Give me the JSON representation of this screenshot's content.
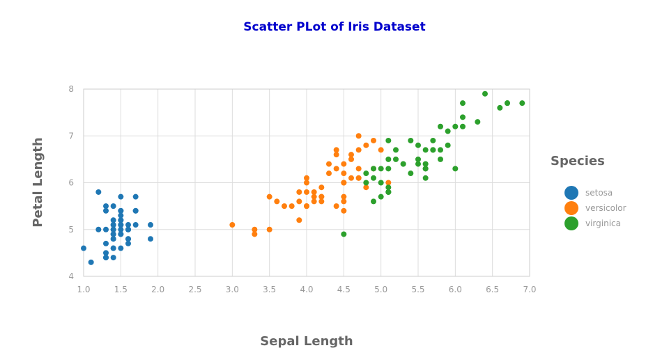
{
  "chart_data": {
    "type": "scatter",
    "title": "Scatter PLot of Iris Dataset",
    "title_color": "#0000cc",
    "xlabel": "Sepal Length",
    "ylabel": "Petal Length",
    "xlim": [
      1.0,
      7.0
    ],
    "ylim": [
      4,
      8
    ],
    "x_ticks": [
      "1.0",
      "1.5",
      "2.0",
      "2.5",
      "3.0",
      "3.5",
      "4.0",
      "4.5",
      "5.0",
      "5.5",
      "6.0",
      "6.5",
      "7.0"
    ],
    "y_ticks": [
      "4",
      "5",
      "6",
      "7",
      "8"
    ],
    "grid": true,
    "legend_title": "Species",
    "legend_position": "right",
    "series": [
      {
        "name": "setosa",
        "color": "#1f77b4",
        "points": [
          [
            1.4,
            5.1
          ],
          [
            1.4,
            4.9
          ],
          [
            1.3,
            4.7
          ],
          [
            1.5,
            4.6
          ],
          [
            1.4,
            5.0
          ],
          [
            1.7,
            5.4
          ],
          [
            1.4,
            4.6
          ],
          [
            1.5,
            5.0
          ],
          [
            1.4,
            4.4
          ],
          [
            1.5,
            4.9
          ],
          [
            1.5,
            5.4
          ],
          [
            1.6,
            4.8
          ],
          [
            1.4,
            4.8
          ],
          [
            1.1,
            4.3
          ],
          [
            1.2,
            5.8
          ],
          [
            1.5,
            5.7
          ],
          [
            1.3,
            5.4
          ],
          [
            1.4,
            5.1
          ],
          [
            1.7,
            5.7
          ],
          [
            1.5,
            5.1
          ],
          [
            1.7,
            5.4
          ],
          [
            1.5,
            5.1
          ],
          [
            1.0,
            4.6
          ],
          [
            1.7,
            5.1
          ],
          [
            1.9,
            4.8
          ],
          [
            1.6,
            5.0
          ],
          [
            1.6,
            5.0
          ],
          [
            1.5,
            5.2
          ],
          [
            1.4,
            5.2
          ],
          [
            1.6,
            4.7
          ],
          [
            1.6,
            4.8
          ],
          [
            1.5,
            5.4
          ],
          [
            1.5,
            5.2
          ],
          [
            1.4,
            5.5
          ],
          [
            1.5,
            4.9
          ],
          [
            1.2,
            5.0
          ],
          [
            1.3,
            5.5
          ],
          [
            1.4,
            4.9
          ],
          [
            1.3,
            4.4
          ],
          [
            1.5,
            5.1
          ],
          [
            1.3,
            5.0
          ],
          [
            1.3,
            4.5
          ],
          [
            1.3,
            4.4
          ],
          [
            1.6,
            5.0
          ],
          [
            1.9,
            5.1
          ],
          [
            1.4,
            4.8
          ],
          [
            1.6,
            5.1
          ],
          [
            1.4,
            4.6
          ],
          [
            1.5,
            5.3
          ],
          [
            1.4,
            5.0
          ]
        ]
      },
      {
        "name": "versicolor",
        "color": "#ff7f0e",
        "points": [
          [
            4.7,
            7.0
          ],
          [
            4.5,
            6.4
          ],
          [
            4.9,
            6.9
          ],
          [
            4.0,
            5.5
          ],
          [
            4.6,
            6.5
          ],
          [
            4.5,
            5.7
          ],
          [
            4.7,
            6.3
          ],
          [
            3.3,
            4.9
          ],
          [
            4.6,
            6.6
          ],
          [
            3.9,
            5.2
          ],
          [
            3.5,
            5.0
          ],
          [
            4.2,
            5.9
          ],
          [
            4.0,
            6.0
          ],
          [
            4.7,
            6.1
          ],
          [
            3.6,
            5.6
          ],
          [
            4.4,
            6.7
          ],
          [
            4.5,
            5.6
          ],
          [
            4.1,
            5.8
          ],
          [
            4.5,
            6.2
          ],
          [
            3.9,
            5.6
          ],
          [
            4.8,
            5.9
          ],
          [
            4.0,
            6.1
          ],
          [
            4.9,
            6.3
          ],
          [
            4.7,
            6.1
          ],
          [
            4.3,
            6.4
          ],
          [
            4.4,
            6.6
          ],
          [
            4.8,
            6.8
          ],
          [
            5.0,
            6.7
          ],
          [
            4.5,
            6.0
          ],
          [
            3.5,
            5.7
          ],
          [
            3.8,
            5.5
          ],
          [
            3.7,
            5.5
          ],
          [
            3.9,
            5.8
          ],
          [
            5.1,
            6.0
          ],
          [
            4.5,
            5.4
          ],
          [
            4.5,
            6.0
          ],
          [
            4.7,
            6.7
          ],
          [
            4.4,
            6.3
          ],
          [
            4.1,
            5.6
          ],
          [
            4.0,
            5.5
          ],
          [
            4.4,
            5.5
          ],
          [
            4.6,
            6.1
          ],
          [
            4.0,
            5.8
          ],
          [
            3.3,
            5.0
          ],
          [
            4.2,
            5.6
          ],
          [
            4.2,
            5.7
          ],
          [
            4.2,
            5.7
          ],
          [
            4.3,
            6.2
          ],
          [
            3.0,
            5.1
          ],
          [
            4.1,
            5.7
          ]
        ]
      },
      {
        "name": "virginica",
        "color": "#2ca02c",
        "points": [
          [
            6.0,
            6.3
          ],
          [
            5.1,
            5.8
          ],
          [
            5.9,
            7.1
          ],
          [
            5.6,
            6.3
          ],
          [
            5.8,
            6.5
          ],
          [
            6.6,
            7.6
          ],
          [
            4.5,
            4.9
          ],
          [
            6.3,
            7.3
          ],
          [
            5.8,
            6.7
          ],
          [
            6.1,
            7.2
          ],
          [
            5.1,
            6.5
          ],
          [
            5.3,
            6.4
          ],
          [
            5.5,
            6.8
          ],
          [
            5.0,
            5.7
          ],
          [
            5.1,
            5.8
          ],
          [
            5.3,
            6.4
          ],
          [
            5.5,
            6.5
          ],
          [
            6.7,
            7.7
          ],
          [
            6.9,
            7.7
          ],
          [
            5.0,
            6.0
          ],
          [
            5.7,
            6.9
          ],
          [
            4.9,
            5.6
          ],
          [
            6.7,
            7.7
          ],
          [
            4.9,
            6.3
          ],
          [
            5.7,
            6.7
          ],
          [
            6.0,
            7.2
          ],
          [
            4.8,
            6.2
          ],
          [
            4.9,
            6.1
          ],
          [
            5.6,
            6.4
          ],
          [
            5.8,
            7.2
          ],
          [
            6.1,
            7.4
          ],
          [
            6.4,
            7.9
          ],
          [
            5.6,
            6.4
          ],
          [
            5.1,
            6.3
          ],
          [
            5.6,
            6.1
          ],
          [
            6.1,
            7.7
          ],
          [
            5.6,
            6.3
          ],
          [
            5.5,
            6.4
          ],
          [
            4.8,
            6.0
          ],
          [
            5.4,
            6.9
          ],
          [
            5.6,
            6.7
          ],
          [
            5.1,
            6.9
          ],
          [
            5.1,
            5.8
          ],
          [
            5.9,
            6.8
          ],
          [
            5.7,
            6.7
          ],
          [
            5.2,
            6.7
          ],
          [
            5.0,
            6.3
          ],
          [
            5.2,
            6.5
          ],
          [
            5.4,
            6.2
          ],
          [
            5.1,
            5.9
          ]
        ]
      }
    ]
  }
}
